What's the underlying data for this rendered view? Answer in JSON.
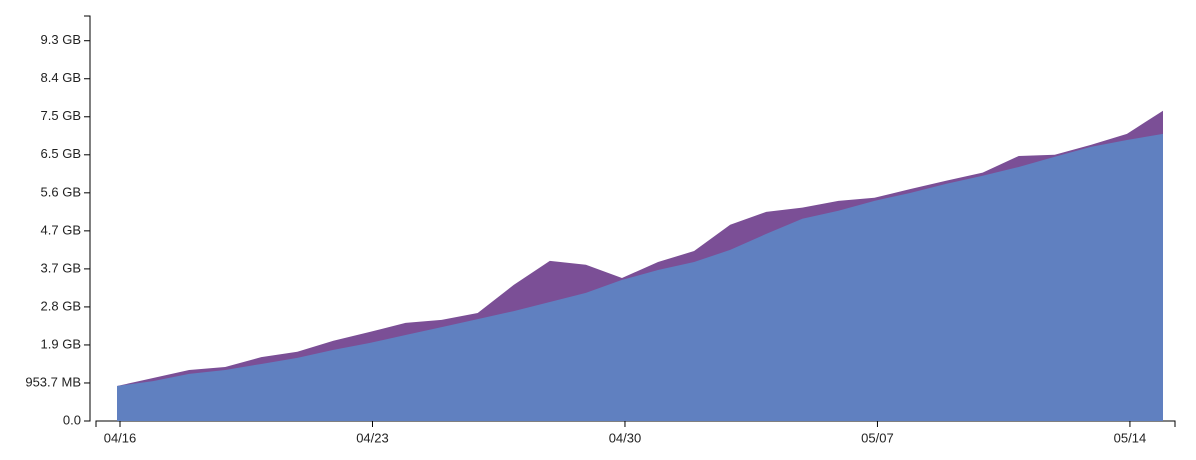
{
  "chart_data": {
    "type": "area",
    "categories": [
      "04/16",
      null,
      null,
      null,
      null,
      null,
      null,
      "04/23",
      null,
      null,
      null,
      null,
      null,
      null,
      "04/30",
      null,
      null,
      null,
      null,
      null,
      null,
      "05/07",
      null,
      null,
      null,
      null,
      null,
      null,
      "05/14",
      null
    ],
    "series": [
      {
        "color": "#7b4f96",
        "values": [
          920000000,
          1130000000,
          1340000000,
          1420000000,
          1680000000,
          1820000000,
          2110000000,
          2340000000,
          2580000000,
          2660000000,
          2840000000,
          3580000000,
          4210000000,
          4110000000,
          3760000000,
          4180000000,
          4470000000,
          5160000000,
          5500000000,
          5610000000,
          5790000000,
          5870000000,
          6100000000,
          6320000000,
          6530000000,
          6970000000,
          7000000000,
          7260000000,
          7550000000,
          8160000000
        ]
      },
      {
        "color": "#6080c0",
        "values": [
          920000000,
          1050000000,
          1240000000,
          1340000000,
          1500000000,
          1660000000,
          1870000000,
          2050000000,
          2260000000,
          2470000000,
          2680000000,
          2890000000,
          3130000000,
          3370000000,
          3710000000,
          3970000000,
          4180000000,
          4500000000,
          4920000000,
          5320000000,
          5530000000,
          5790000000,
          6000000000,
          6240000000,
          6450000000,
          6680000000,
          6950000000,
          7210000000,
          7390000000,
          7550000000
        ]
      }
    ],
    "ylim": [
      0,
      10650000000
    ],
    "yticks": [
      {
        "value": 0,
        "label": "0.0"
      },
      {
        "value": 1000000000,
        "label": "953.7 MB"
      },
      {
        "value": 2000000000,
        "label": "1.9 GB"
      },
      {
        "value": 3000000000,
        "label": "2.8 GB"
      },
      {
        "value": 4000000000,
        "label": "3.7 GB"
      },
      {
        "value": 5000000000,
        "label": "4.7 GB"
      },
      {
        "value": 6000000000,
        "label": "5.6 GB"
      },
      {
        "value": 7000000000,
        "label": "6.5 GB"
      },
      {
        "value": 8000000000,
        "label": "7.5 GB"
      },
      {
        "value": 9000000000,
        "label": "8.4 GB"
      },
      {
        "value": 10000000000,
        "label": "9.3 GB"
      }
    ]
  }
}
